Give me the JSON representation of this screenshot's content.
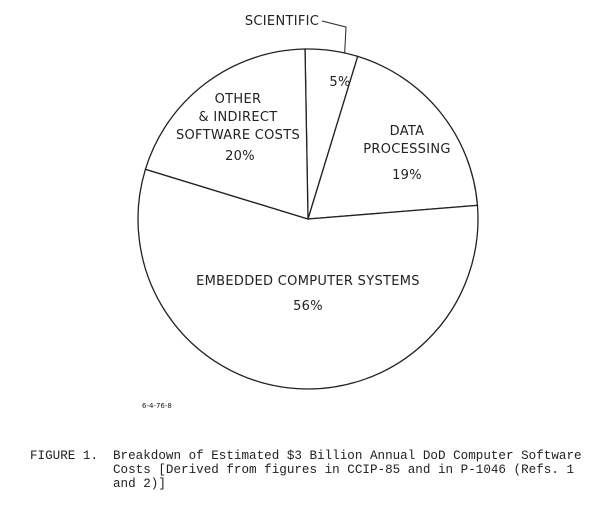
{
  "chart_data": {
    "type": "pie",
    "categories": [
      "SCIENTIFIC",
      "DATA\nPROCESSING",
      "EMBEDDED COMPUTER SYSTEMS",
      "OTHER\n& INDIRECT\nSOFTWARE COSTS"
    ],
    "values": [
      5,
      19,
      56,
      20
    ],
    "value_labels": [
      "5%",
      "19%",
      "56%",
      "20%"
    ],
    "color": "#ffffff"
  },
  "figure_id": "6-4-76-8",
  "caption": {
    "label": "FIGURE 1.",
    "text": "Breakdown of Estimated $3 Billion Annual DoD Computer Software Costs [Derived from figures in CCIP-85 and in P-1046 (Refs. 1 and 2)]"
  }
}
